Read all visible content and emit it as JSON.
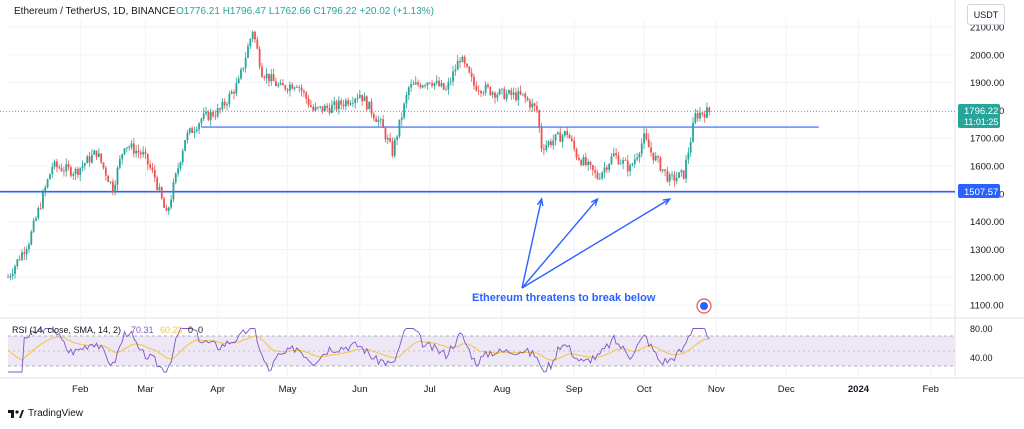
{
  "header": {
    "symbol": "Ethereum / TetherUS, 1D, BINANCE",
    "ohlc": "O1776.21 H1796.47 L1762.66 C1796.22 +20.02 (+1.13%)",
    "currency": "USDT"
  },
  "price_labels": {
    "last_price": "1796.22",
    "countdown": "11:01:25",
    "support_level": "1507.57"
  },
  "rsi": {
    "title": "RSI (14, close, SMA, 14, 2)",
    "value_rsi": "70.31",
    "value_sma": "60.23",
    "extra1": "0",
    "extra2": "0",
    "ticks": [
      "80.00",
      "40.00"
    ]
  },
  "annotation": {
    "text": "Ethereum threatens to break below"
  },
  "branding": {
    "name": "TradingView"
  },
  "colors": {
    "up": "#26a69a",
    "down": "#ef5350",
    "support_line": "#2962ff",
    "resistance_line": "#2962ff",
    "annotation": "#2962ff",
    "last_price_bg": "#26a69a",
    "rsi_line": "#7e57c2",
    "rsi_sma": "#f5c53c",
    "rsi_band": "#ede7f6"
  },
  "chart_data": {
    "type": "candlestick",
    "ylim": [
      1050,
      2150
    ],
    "y_ticks": [
      1100,
      1200,
      1300,
      1400,
      1500,
      1600,
      1700,
      1800,
      1900,
      2000,
      2100
    ],
    "x_tick_labels": [
      "Feb",
      "Mar",
      "Apr",
      "May",
      "Jun",
      "Jul",
      "Aug",
      "Sep",
      "Oct",
      "Nov",
      "Dec",
      "2024",
      "Feb"
    ],
    "horizontal_lines": [
      {
        "value": 1507.57,
        "label": "1507.57",
        "style": "solid"
      },
      {
        "value": 1740,
        "style": "solid"
      }
    ],
    "close_path": [
      {
        "x": "2023-01-01",
        "y": 1200
      },
      {
        "x": "2023-01-10",
        "y": 1330
      },
      {
        "x": "2023-01-20",
        "y": 1600
      },
      {
        "x": "2023-01-30",
        "y": 1580
      },
      {
        "x": "2023-02-08",
        "y": 1650
      },
      {
        "x": "2023-02-15",
        "y": 1520
      },
      {
        "x": "2023-02-20",
        "y": 1680
      },
      {
        "x": "2023-02-28",
        "y": 1640
      },
      {
        "x": "2023-03-05",
        "y": 1560
      },
      {
        "x": "2023-03-10",
        "y": 1420
      },
      {
        "x": "2023-03-18",
        "y": 1700
      },
      {
        "x": "2023-03-25",
        "y": 1770
      },
      {
        "x": "2023-04-02",
        "y": 1800
      },
      {
        "x": "2023-04-10",
        "y": 1900
      },
      {
        "x": "2023-04-16",
        "y": 2090
      },
      {
        "x": "2023-04-20",
        "y": 1940
      },
      {
        "x": "2023-04-28",
        "y": 1880
      },
      {
        "x": "2023-05-05",
        "y": 1900
      },
      {
        "x": "2023-05-12",
        "y": 1800
      },
      {
        "x": "2023-05-22",
        "y": 1815
      },
      {
        "x": "2023-06-01",
        "y": 1860
      },
      {
        "x": "2023-06-10",
        "y": 1750
      },
      {
        "x": "2023-06-15",
        "y": 1650
      },
      {
        "x": "2023-06-22",
        "y": 1880
      },
      {
        "x": "2023-07-01",
        "y": 1910
      },
      {
        "x": "2023-07-08",
        "y": 1870
      },
      {
        "x": "2023-07-14",
        "y": 1990
      },
      {
        "x": "2023-07-20",
        "y": 1890
      },
      {
        "x": "2023-07-31",
        "y": 1860
      },
      {
        "x": "2023-08-10",
        "y": 1850
      },
      {
        "x": "2023-08-16",
        "y": 1800
      },
      {
        "x": "2023-08-18",
        "y": 1670
      },
      {
        "x": "2023-08-29",
        "y": 1720
      },
      {
        "x": "2023-09-02",
        "y": 1640
      },
      {
        "x": "2023-09-11",
        "y": 1560
      },
      {
        "x": "2023-09-18",
        "y": 1640
      },
      {
        "x": "2023-09-25",
        "y": 1590
      },
      {
        "x": "2023-10-01",
        "y": 1700
      },
      {
        "x": "2023-10-04",
        "y": 1650
      },
      {
        "x": "2023-10-12",
        "y": 1550
      },
      {
        "x": "2023-10-18",
        "y": 1570
      },
      {
        "x": "2023-10-23",
        "y": 1780
      },
      {
        "x": "2023-10-25",
        "y": 1790
      },
      {
        "x": "2023-10-29",
        "y": 1796
      }
    ],
    "annotation_arrow_targets": [
      {
        "x": "2023-08-18",
        "y": 1510
      },
      {
        "x": "2023-09-11",
        "y": 1510
      },
      {
        "x": "2023-10-12",
        "y": 1510
      }
    ]
  }
}
